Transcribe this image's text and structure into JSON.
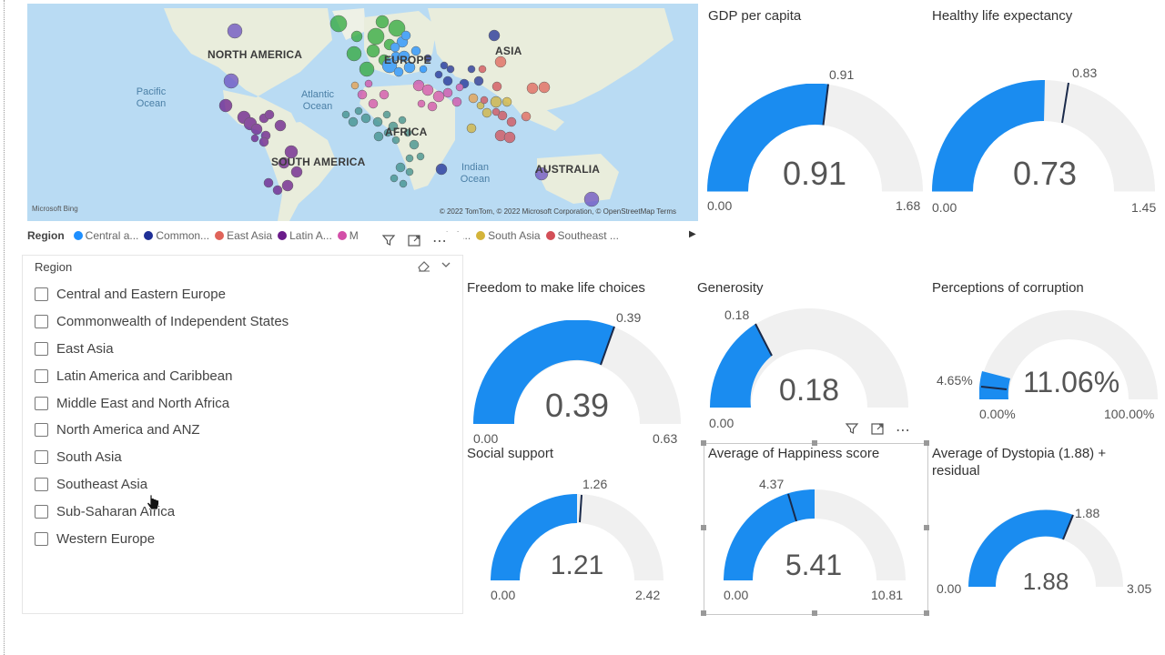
{
  "map": {
    "continents": [
      "NORTH AMERICA",
      "EUROPE",
      "ASIA",
      "AFRICA",
      "SOUTH AMERICA",
      "AUSTRALIA"
    ],
    "oceans": [
      "Pacific Ocean",
      "Atlantic Ocean",
      "Indian Ocean"
    ],
    "bing": "Microsoft Bing",
    "copyright": "© 2022 TomTom, © 2022 Microsoft Corporation, © OpenStreetMap  Terms"
  },
  "legend": {
    "title": "Region",
    "items": [
      {
        "label": "Central a...",
        "color": "#1e8fff"
      },
      {
        "label": "Common...",
        "color": "#1f2f96"
      },
      {
        "label": "East Asia",
        "color": "#e0645a"
      },
      {
        "label": "Latin A...",
        "color": "#6a1b8a"
      },
      {
        "label": "M",
        "color": "#d34fa8"
      },
      {
        "label": "orth A...",
        "color": "#e8a04a"
      },
      {
        "label": "South Asia",
        "color": "#d4b43a"
      },
      {
        "label": "Southeast ...",
        "color": "#d34f57"
      }
    ]
  },
  "slicer": {
    "title": "Region",
    "items": [
      "Central and Eastern Europe",
      "Commonwealth of Independent States",
      "East Asia",
      "Latin America and Caribbean",
      "Middle East and North Africa",
      "North America and ANZ",
      "South Asia",
      "Southeast Asia",
      "Sub-Saharan Africa",
      "Western Europe"
    ]
  },
  "gauges": {
    "gdp": {
      "title": "GDP per capita",
      "value": "0.91",
      "min": "0.00",
      "max": "1.68",
      "target": "0.91"
    },
    "life": {
      "title": "Healthy life expectancy",
      "value": "0.73",
      "min": "0.00",
      "max": "1.45",
      "target": "0.83"
    },
    "freedom": {
      "title": "Freedom to make life choices",
      "value": "0.39",
      "min": "0.00",
      "max": "0.63",
      "target": "0.39"
    },
    "generosity": {
      "title": "Generosity",
      "value": "0.18",
      "min": "0.00",
      "max": "",
      "target": "0.18"
    },
    "corruption": {
      "title": "Perceptions of corruption",
      "value": "11.06%",
      "min": "0.00%",
      "max": "100.00%",
      "target": "4.65%"
    },
    "social": {
      "title": "Social support",
      "value": "1.21",
      "min": "0.00",
      "max": "2.42",
      "target": "1.26"
    },
    "happiness": {
      "title": "Average of Happiness score",
      "value": "5.41",
      "min": "0.00",
      "max": "10.81",
      "target": "4.37"
    },
    "dystopia": {
      "title": "Average of Dystopia (1.88) + residual",
      "value": "1.88",
      "min": "0.00",
      "max": "3.05",
      "target": "1.88"
    }
  }
}
